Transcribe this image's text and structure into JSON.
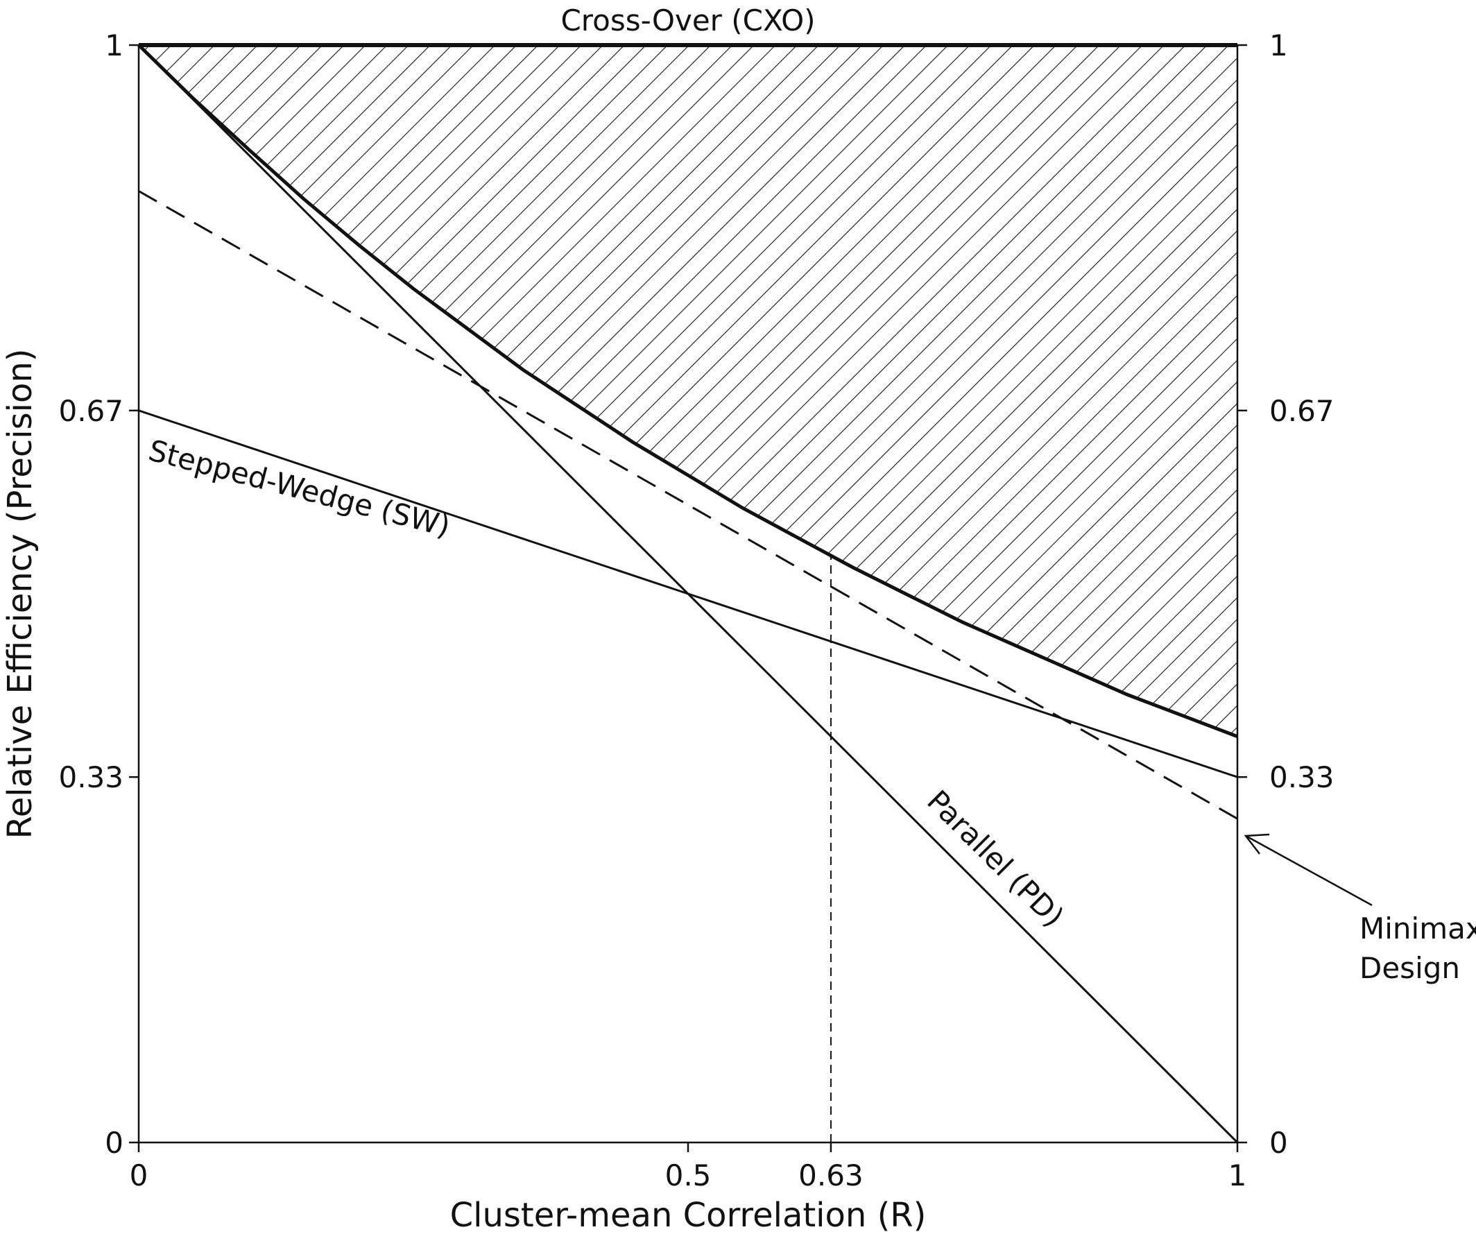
{
  "chart_data": {
    "type": "line",
    "title": "",
    "xlabel": "Cluster-mean Correlation (R)",
    "ylabel": "Relative Efficiency (Precision)",
    "xlim": [
      0,
      1
    ],
    "ylim": [
      0,
      1
    ],
    "x_ticks": [
      "0",
      "0.5",
      "0.63",
      "1"
    ],
    "x_tick_values": [
      0,
      0.5,
      0.63,
      1
    ],
    "y_ticks": [
      "0",
      "0.33",
      "0.67",
      "1"
    ],
    "y_tick_values": [
      0,
      0.333,
      0.667,
      1
    ],
    "series": [
      {
        "name": "Cross-Over (CXO)",
        "x": [
          0,
          1
        ],
        "y": [
          1,
          1
        ],
        "style": "solid-thick"
      },
      {
        "name": "Parallel (PD)",
        "x": [
          0,
          1
        ],
        "y": [
          1,
          0
        ],
        "style": "solid"
      },
      {
        "name": "Stepped-Wedge (SW)",
        "x": [
          0,
          1
        ],
        "y": [
          0.667,
          0.333
        ],
        "style": "solid"
      },
      {
        "name": "Minimax Design",
        "x": [
          0,
          1
        ],
        "y": [
          0.867,
          0.295
        ],
        "style": "dashed"
      }
    ],
    "boundary_curve": {
      "x": [
        0,
        0.05,
        0.1,
        0.15,
        0.2,
        0.25,
        0.3,
        0.35,
        0.4,
        0.45,
        0.5,
        0.55,
        0.6,
        0.65,
        0.7,
        0.75,
        0.8,
        0.85,
        0.9,
        0.95,
        1
      ],
      "y": [
        1,
        0.951,
        0.905,
        0.86,
        0.818,
        0.778,
        0.741,
        0.704,
        0.671,
        0.638,
        0.608,
        0.578,
        0.551,
        0.524,
        0.499,
        0.474,
        0.452,
        0.43,
        0.408,
        0.389,
        0.37
      ]
    },
    "shaded_region": "between boundary curve and Cross-Over line (hatched)",
    "reference_line": {
      "x": 0.63,
      "style": "dashed-vertical"
    },
    "annotations": [
      {
        "text": "Minimax",
        "points_to": [
          1,
          0.295
        ]
      },
      {
        "text": "Design"
      }
    ],
    "grid": false,
    "legend": "none"
  }
}
